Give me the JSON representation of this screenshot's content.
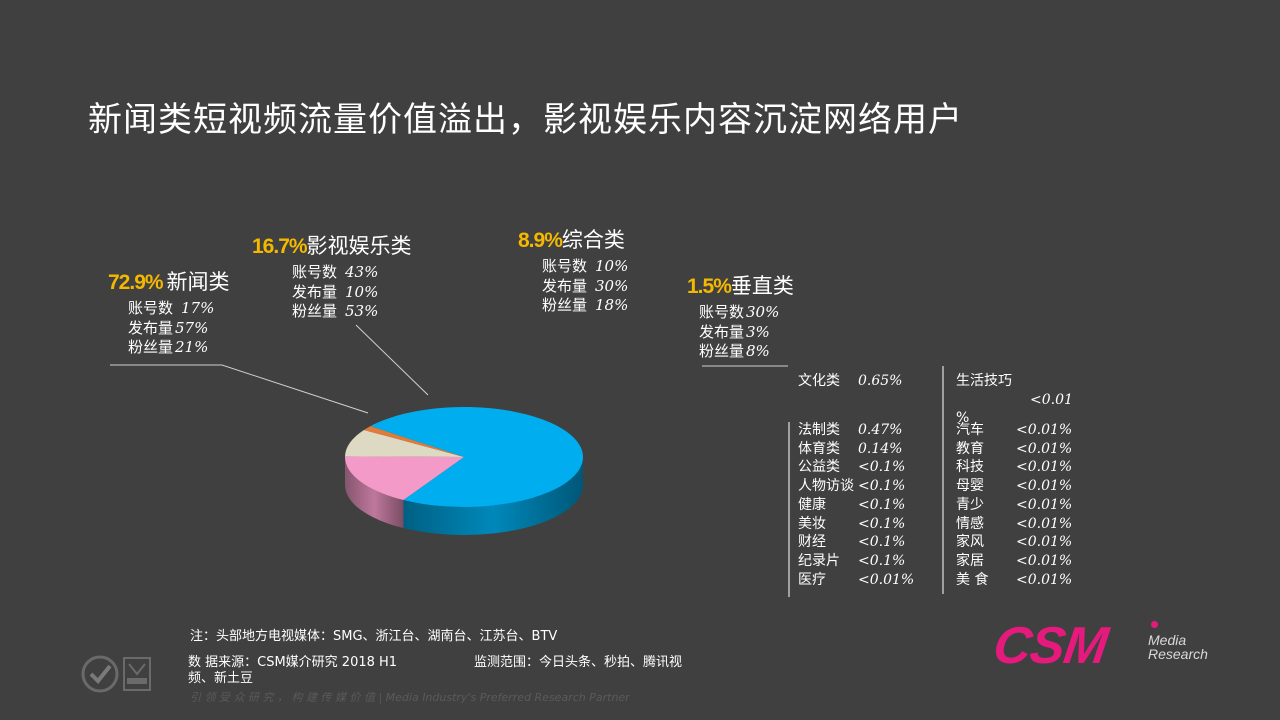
{
  "title": "新闻类短视频流量价值溢出，影视娱乐内容沉淀网络用户",
  "chart_data": {
    "type": "pie",
    "categories": [
      "新闻类",
      "影视娱乐类",
      "综合类",
      "垂直类"
    ],
    "values": [
      72.9,
      16.7,
      8.9,
      1.5
    ],
    "colors": [
      "#00aeef",
      "#f49ac8",
      "#ddd9c3",
      "#e07b39"
    ],
    "labels": [
      {
        "pct": "72.9%",
        "name": "新闻类",
        "metrics": [
          [
            "账号数",
            "17%"
          ],
          [
            "发布量",
            "57%"
          ],
          [
            "粉丝量",
            "21%"
          ]
        ]
      },
      {
        "pct": "16.7%",
        "name": "影视娱乐类",
        "metrics": [
          [
            "账号数",
            "43%"
          ],
          [
            "发布量",
            "10%"
          ],
          [
            "粉丝量",
            "53%"
          ]
        ]
      },
      {
        "pct": "8.9%",
        "name": "综合类",
        "metrics": [
          [
            "账号数",
            "10%"
          ],
          [
            "发布量",
            "30%"
          ],
          [
            "粉丝量",
            "18%"
          ]
        ]
      },
      {
        "pct": "1.5%",
        "name": "垂直类",
        "metrics": [
          [
            "账号数",
            "30%"
          ],
          [
            "发布量",
            "3%"
          ],
          [
            "粉丝量",
            "8%"
          ]
        ]
      }
    ],
    "vertical_breakdown_left_head": {
      "name": "文化类",
      "value": "0.65%"
    },
    "vertical_breakdown_left": [
      {
        "name": "法制类",
        "value": "0.47%"
      },
      {
        "name": "体育类",
        "value": "0.14%"
      },
      {
        "name": "公益类",
        "value": "<0.1%"
      },
      {
        "name": "人物访谈",
        "value": "<0.1%"
      },
      {
        "name": "健康",
        "value": "<0.1%"
      },
      {
        "name": "美妆",
        "value": "<0.1%"
      },
      {
        "name": "财经",
        "value": "<0.1%"
      },
      {
        "name": "纪录片",
        "value": "<0.1%"
      },
      {
        "name": "医疗",
        "value": "<0.01%"
      }
    ],
    "vertical_breakdown_right_head": {
      "name": "生活技巧",
      "value": "<0.01",
      "suffix": "%"
    },
    "vertical_breakdown_right": [
      {
        "name": "汽车",
        "value": "<0.01%"
      },
      {
        "name": "教育",
        "value": "<0.01%"
      },
      {
        "name": "科技",
        "value": "<0.01%"
      },
      {
        "name": "母婴",
        "value": "<0.01%"
      },
      {
        "name": "青少",
        "value": "<0.01%"
      },
      {
        "name": "情感",
        "value": "<0.01%"
      },
      {
        "name": "家风",
        "value": "<0.01%"
      },
      {
        "name": "家居",
        "value": "<0.01%"
      },
      {
        "name": "美 食",
        "value": "<0.01%"
      }
    ]
  },
  "footer": {
    "note": "注：头部地方电视媒体：SMG、浙江台、湖南台、江苏台、BTV",
    "source": "数 据来源：CSM媒介研究 2018 H1",
    "scope": "监测范围：今日头条、秒拍、腾讯视",
    "scope_cont": "频、新土豆",
    "tagline": "引 领 受 众 研 究 ， 构 建 传 媒 价 值 | Media Industry's Preferred Research Partner"
  },
  "logo": {
    "name": "CSM",
    "line1": "Media",
    "line2": "Research"
  }
}
